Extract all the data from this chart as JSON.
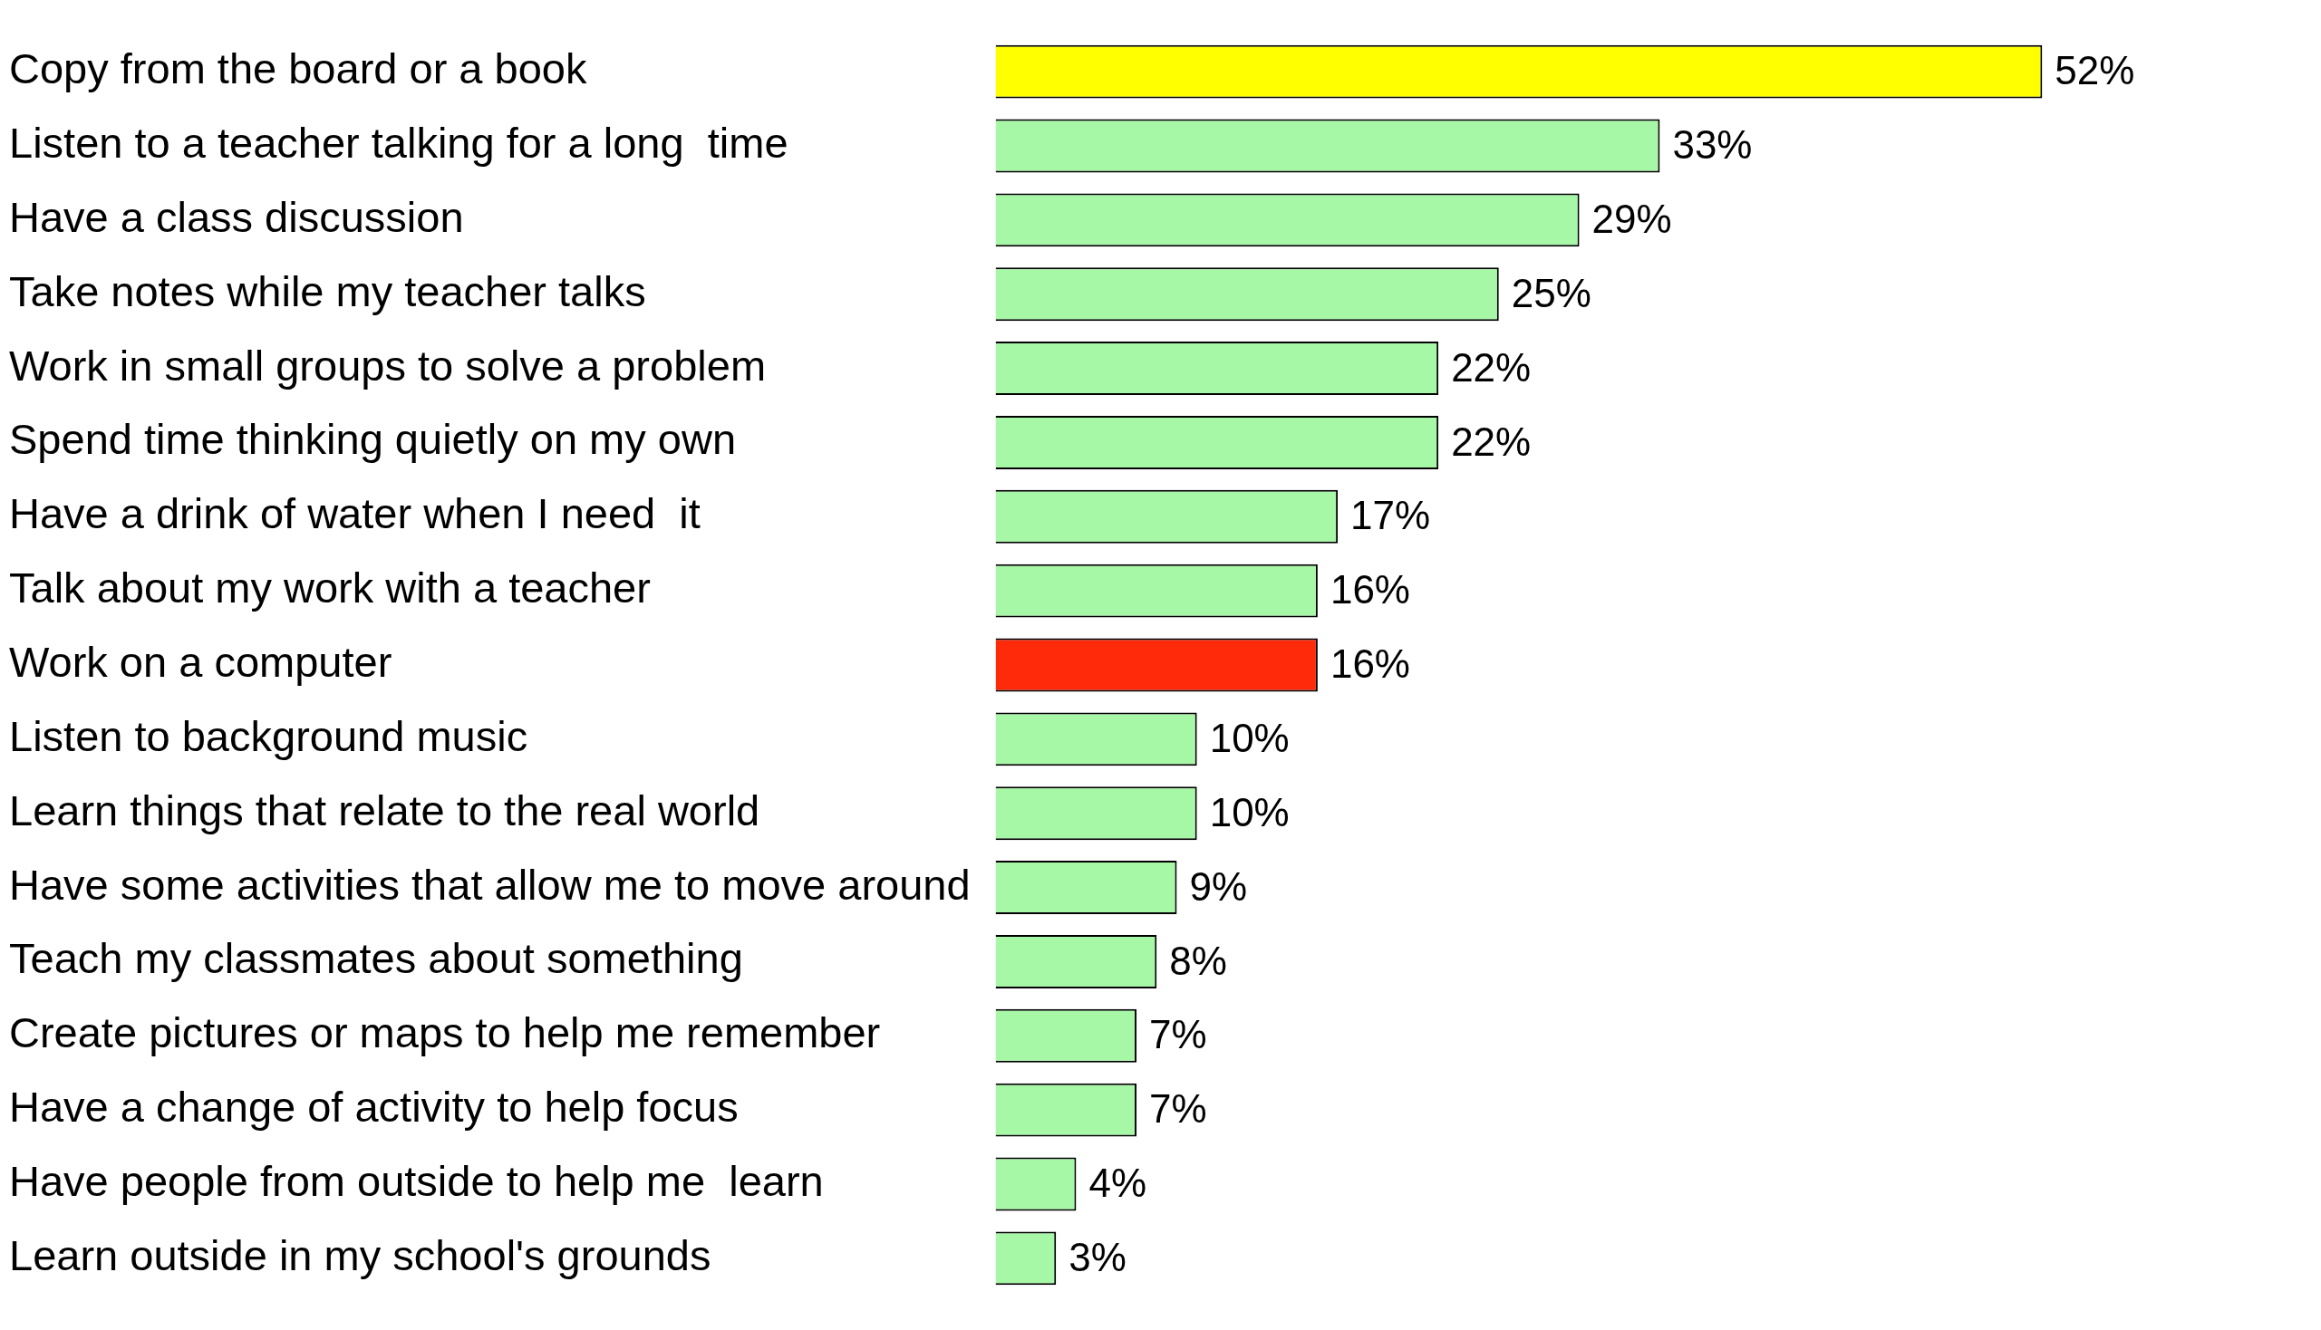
{
  "chart_data": {
    "type": "bar",
    "orientation": "horizontal",
    "grid": false,
    "legend": false,
    "categories": [
      "Copy from the board or a book",
      "Listen to a teacher talking for a long  time",
      "Have a class discussion",
      "Take notes while my teacher talks",
      "Work in small groups to solve a problem",
      "Spend time thinking quietly on my own",
      "Have a drink of water when I need  it",
      "Talk about my work with a teacher",
      "Work on a computer",
      "Listen to background music",
      "Learn things that relate to the real world",
      "Have some activities that allow me to move around",
      "Teach my classmates about something",
      "Create pictures or maps to help me remember",
      "Have a change of activity to help focus",
      "Have people from outside to help me  learn",
      "Learn outside in my school's grounds"
    ],
    "values": [
      52,
      33,
      29,
      25,
      22,
      22,
      17,
      16,
      16,
      10,
      10,
      9,
      8,
      7,
      7,
      4,
      3
    ],
    "value_labels": [
      "52%",
      "33%",
      "29%",
      "25%",
      "22%",
      "22%",
      "17%",
      "16%",
      "16%",
      "10%",
      "10%",
      "9%",
      "8%",
      "7%",
      "7%",
      "4%",
      "3%"
    ],
    "colors": [
      "#ffff00",
      "#a6f7a6",
      "#a6f7a6",
      "#a6f7a6",
      "#a6f7a6",
      "#a6f7a6",
      "#a6f7a6",
      "#a6f7a6",
      "#ff2a0a",
      "#a6f7a6",
      "#a6f7a6",
      "#a6f7a6",
      "#a6f7a6",
      "#a6f7a6",
      "#a6f7a6",
      "#a6f7a6",
      "#a6f7a6"
    ]
  }
}
